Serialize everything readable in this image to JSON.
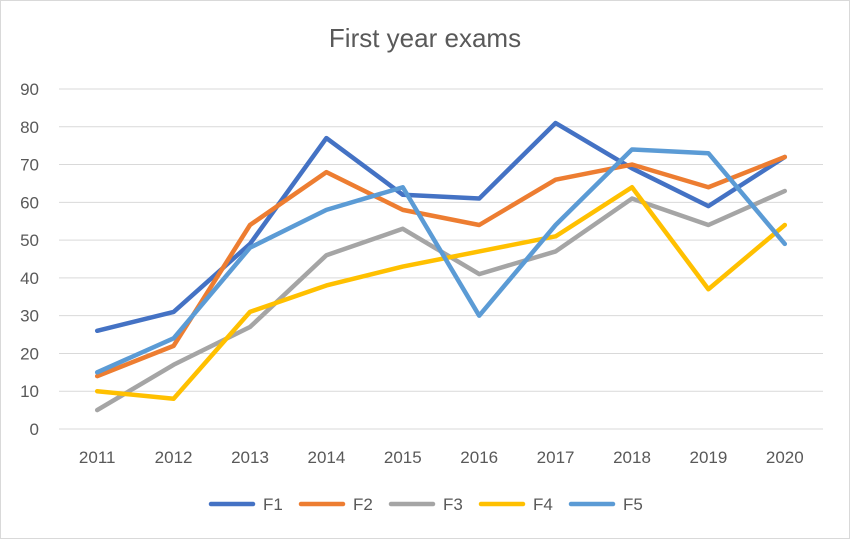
{
  "chart_data": {
    "type": "line",
    "title": "First year exams",
    "xlabel": "",
    "ylabel": "",
    "ylim": [
      0,
      90
    ],
    "yticks": [
      0,
      10,
      20,
      30,
      40,
      50,
      60,
      70,
      80,
      90
    ],
    "categories": [
      "2011",
      "2012",
      "2013",
      "2014",
      "2015",
      "2016",
      "2017",
      "2018",
      "2019",
      "2020"
    ],
    "grid": "horizontal",
    "legend_position": "bottom",
    "series": [
      {
        "name": "F1",
        "color": "#4472c4",
        "values": [
          26,
          31,
          49,
          77,
          62,
          61,
          81,
          69,
          59,
          72
        ]
      },
      {
        "name": "F2",
        "color": "#ed7d31",
        "values": [
          14,
          22,
          54,
          68,
          58,
          54,
          66,
          70,
          64,
          72
        ]
      },
      {
        "name": "F3",
        "color": "#a5a5a5",
        "values": [
          5,
          17,
          27,
          46,
          53,
          41,
          47,
          61,
          54,
          63
        ]
      },
      {
        "name": "F4",
        "color": "#ffc000",
        "values": [
          10,
          8,
          31,
          38,
          43,
          47,
          51,
          64,
          37,
          54
        ]
      },
      {
        "name": "F5",
        "color": "#5b9bd5",
        "values": [
          15,
          24,
          48,
          58,
          64,
          30,
          54,
          74,
          73,
          49
        ]
      }
    ]
  }
}
